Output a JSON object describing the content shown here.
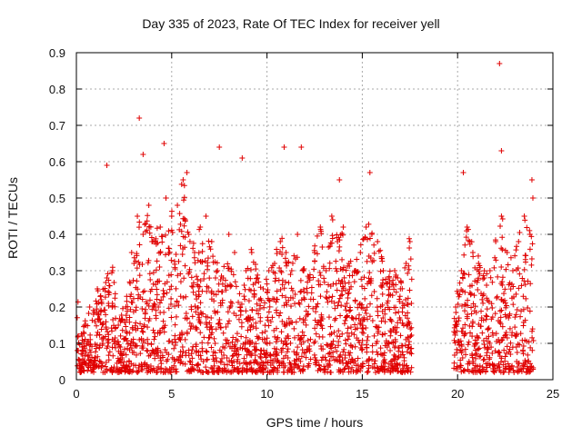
{
  "chart_data": {
    "type": "scatter",
    "title": "Day 335 of 2023, Rate Of TEC Index for receiver yell",
    "xlabel": "GPS time / hours",
    "ylabel": "ROTI / TECUs",
    "xlim": [
      0,
      25
    ],
    "ylim": [
      0,
      0.9
    ],
    "xticks": [
      0,
      5,
      10,
      15,
      20,
      25
    ],
    "yticks": [
      0,
      0.1,
      0.2,
      0.3,
      0.4,
      0.5,
      0.6,
      0.7,
      0.8,
      0.9
    ],
    "xtick_labels": [
      "0",
      "5",
      "10",
      "15",
      "20",
      "25"
    ],
    "ytick_labels": [
      "0",
      "0.1",
      "0.2",
      "0.3",
      "0.4",
      "0.5",
      "0.6",
      "0.7",
      "0.8",
      "0.9"
    ],
    "grid": true,
    "marker": "+",
    "color": "#e00000",
    "data_gap_hours": [
      17.6,
      19.8
    ],
    "series": [
      {
        "x": [
          0.1,
          0.3,
          0.5,
          0.7,
          0.9,
          1.1,
          1.3,
          1.6,
          1.9,
          2.2,
          2.6,
          2.9,
          3.2,
          3.5,
          3.8,
          4.1,
          4.4,
          4.7,
          5.0,
          5.3,
          5.6,
          5.9,
          6.2,
          6.5,
          6.8,
          7.1,
          7.4,
          7.7,
          8.0,
          8.3,
          8.6,
          8.9,
          9.2,
          9.5,
          9.8,
          10.1,
          10.4,
          10.7,
          11.0,
          11.3,
          11.6,
          11.9,
          12.2,
          12.5,
          12.8,
          13.1,
          13.4,
          13.7,
          14.0,
          14.3,
          14.6,
          14.9,
          15.2,
          15.5,
          15.8,
          16.1,
          16.4,
          16.7,
          17.0,
          17.3,
          17.5,
          19.9,
          20.2,
          20.5,
          20.8,
          21.1,
          21.4,
          21.7,
          22.0,
          22.3,
          22.6,
          22.9,
          23.2,
          23.5,
          23.8,
          23.95,
          1.6,
          3.3,
          3.5,
          4.6,
          5.8,
          7.5,
          8.7,
          10.9,
          11.8,
          13.8,
          15.4,
          20.3,
          22.2,
          22.3,
          23.9,
          0.2,
          0.8,
          1.5,
          2.4,
          3.0,
          4.2,
          4.9,
          5.5,
          6.4,
          7.2,
          7.9,
          8.5,
          9.4,
          10.2,
          11.1,
          11.7,
          12.6,
          13.3,
          14.1,
          14.8,
          15.7,
          16.5,
          17.2,
          20.0,
          20.6,
          21.2,
          21.9,
          22.5,
          23.1,
          23.6
        ],
        "y": [
          0.08,
          0.12,
          0.15,
          0.2,
          0.18,
          0.25,
          0.22,
          0.28,
          0.3,
          0.15,
          0.2,
          0.35,
          0.45,
          0.4,
          0.48,
          0.38,
          0.42,
          0.5,
          0.45,
          0.48,
          0.55,
          0.4,
          0.35,
          0.42,
          0.45,
          0.38,
          0.3,
          0.28,
          0.4,
          0.35,
          0.2,
          0.3,
          0.35,
          0.28,
          0.25,
          0.3,
          0.32,
          0.38,
          0.35,
          0.3,
          0.4,
          0.3,
          0.28,
          0.35,
          0.42,
          0.3,
          0.45,
          0.38,
          0.42,
          0.32,
          0.3,
          0.35,
          0.42,
          0.4,
          0.38,
          0.3,
          0.28,
          0.3,
          0.25,
          0.32,
          0.38,
          0.2,
          0.3,
          0.42,
          0.35,
          0.32,
          0.28,
          0.3,
          0.38,
          0.45,
          0.35,
          0.3,
          0.38,
          0.45,
          0.4,
          0.5,
          0.59,
          0.72,
          0.62,
          0.65,
          0.57,
          0.64,
          0.61,
          0.64,
          0.64,
          0.55,
          0.57,
          0.57,
          0.87,
          0.63,
          0.55,
          0.03,
          0.05,
          0.02,
          0.06,
          0.04,
          0.07,
          0.03,
          0.05,
          0.04,
          0.02,
          0.06,
          0.03,
          0.05,
          0.04,
          0.06,
          0.03,
          0.05,
          0.04,
          0.06,
          0.03,
          0.02,
          0.05,
          0.04,
          0.03,
          0.05,
          0.02,
          0.04,
          0.03,
          0.05,
          0.02
        ]
      }
    ]
  }
}
